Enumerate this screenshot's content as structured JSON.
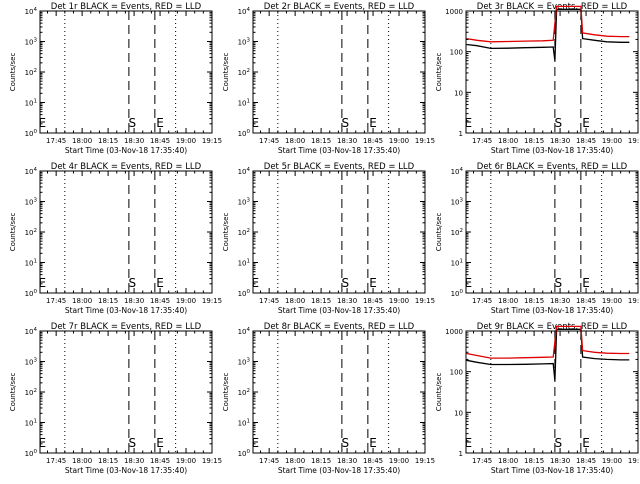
{
  "chart_data": [
    {
      "type": "line",
      "title": "Det 1r BLACK = Events, RED = LLD",
      "xlabel": "Start Time (03-Nov-18 17:35:40)",
      "ylabel": "Counts/sec",
      "y_scale": "log",
      "ylim": [
        1,
        10000
      ],
      "y_tick_labels": [
        "10^0",
        "10^1",
        "10^2",
        "10^3",
        "10^4"
      ],
      "x_tick_labels": [
        "17:45",
        "18:00",
        "18:15",
        "18:30",
        "18:45",
        "19:00",
        "19:15"
      ],
      "dotted_lines_at": [
        "17:50",
        "18:54"
      ],
      "dashed_lines_at": [
        "18:27",
        "18:42"
      ],
      "markers": [
        {
          "text": "E",
          "at": "17:37"
        },
        {
          "text": "S",
          "at": "18:29"
        },
        {
          "text": "E",
          "at": "18:45"
        }
      ],
      "series": []
    },
    {
      "type": "line",
      "title": "Det 2r BLACK = Events, RED = LLD",
      "xlabel": "Start Time (03-Nov-18 17:35:40)",
      "ylabel": "Counts/sec",
      "y_scale": "log",
      "ylim": [
        1,
        10000
      ],
      "y_tick_labels": [
        "10^0",
        "10^1",
        "10^2",
        "10^3",
        "10^4"
      ],
      "x_tick_labels": [
        "17:45",
        "18:00",
        "18:15",
        "18:30",
        "18:45",
        "19:00",
        "19:15"
      ],
      "dotted_lines_at": [
        "17:50",
        "18:54"
      ],
      "dashed_lines_at": [
        "18:27",
        "18:42"
      ],
      "markers": [
        {
          "text": "E",
          "at": "17:37"
        },
        {
          "text": "S",
          "at": "18:29"
        },
        {
          "text": "E",
          "at": "18:45"
        }
      ],
      "series": []
    },
    {
      "type": "line",
      "title": "Det 3r BLACK = Events, RED = LLD",
      "xlabel": "Start Time (03-Nov-18 17:35:40)",
      "ylabel": "Counts/sec",
      "y_scale": "log",
      "ylim": [
        1,
        1000
      ],
      "y_tick_labels": [
        "1",
        "10",
        "100",
        "1000"
      ],
      "x_tick_labels": [
        "17:45",
        "18:00",
        "18:15",
        "18:30",
        "18:45",
        "19:00",
        "19:15"
      ],
      "dotted_lines_at": [
        "17:50",
        "18:54"
      ],
      "dashed_lines_at": [
        "18:27",
        "18:42"
      ],
      "markers": [
        {
          "text": "E",
          "at": "17:37"
        },
        {
          "text": "S",
          "at": "18:29"
        },
        {
          "text": "E",
          "at": "18:45"
        }
      ],
      "series": [
        {
          "color": "#000000",
          "points": [
            [
              "17:36",
              150
            ],
            [
              "17:42",
              140
            ],
            [
              "17:50",
              120
            ],
            [
              "18:00",
              122
            ],
            [
              "18:10",
              125
            ],
            [
              "18:20",
              128
            ],
            [
              "18:26",
              130
            ],
            [
              "18:27",
              60
            ],
            [
              "18:28",
              1100
            ],
            [
              "18:42",
              1100
            ],
            [
              "18:43",
              210
            ],
            [
              "18:50",
              190
            ],
            [
              "18:57",
              175
            ],
            [
              "19:05",
              170
            ],
            [
              "19:10",
              170
            ]
          ]
        },
        {
          "color": "#e00000",
          "points": [
            [
              "17:36",
              210
            ],
            [
              "17:42",
              190
            ],
            [
              "17:50",
              175
            ],
            [
              "18:00",
              178
            ],
            [
              "18:10",
              182
            ],
            [
              "18:20",
              185
            ],
            [
              "18:26",
              190
            ],
            [
              "18:28",
              1300
            ],
            [
              "18:42",
              1300
            ],
            [
              "18:43",
              290
            ],
            [
              "18:50",
              260
            ],
            [
              "18:57",
              240
            ],
            [
              "19:05",
              235
            ],
            [
              "19:10",
              235
            ]
          ]
        }
      ]
    },
    {
      "type": "line",
      "title": "Det 4r BLACK = Events, RED = LLD",
      "xlabel": "Start Time (03-Nov-18 17:35:40)",
      "ylabel": "Counts/sec",
      "y_scale": "log",
      "ylim": [
        1,
        10000
      ],
      "y_tick_labels": [
        "10^0",
        "10^1",
        "10^2",
        "10^3",
        "10^4"
      ],
      "x_tick_labels": [
        "17:45",
        "18:00",
        "18:15",
        "18:30",
        "18:45",
        "19:00",
        "19:15"
      ],
      "dotted_lines_at": [
        "17:50",
        "18:54"
      ],
      "dashed_lines_at": [
        "18:27",
        "18:42"
      ],
      "markers": [
        {
          "text": "E",
          "at": "17:37"
        },
        {
          "text": "S",
          "at": "18:29"
        },
        {
          "text": "E",
          "at": "18:45"
        }
      ],
      "series": []
    },
    {
      "type": "line",
      "title": "Det 5r BLACK = Events, RED = LLD",
      "xlabel": "Start Time (03-Nov-18 17:35:40)",
      "ylabel": "Counts/sec",
      "y_scale": "log",
      "ylim": [
        1,
        10000
      ],
      "y_tick_labels": [
        "10^0",
        "10^1",
        "10^2",
        "10^3",
        "10^4"
      ],
      "x_tick_labels": [
        "17:45",
        "18:00",
        "18:15",
        "18:30",
        "18:45",
        "19:00",
        "19:15"
      ],
      "dotted_lines_at": [
        "17:50",
        "18:54"
      ],
      "dashed_lines_at": [
        "18:27",
        "18:42"
      ],
      "markers": [
        {
          "text": "E",
          "at": "17:37"
        },
        {
          "text": "S",
          "at": "18:29"
        },
        {
          "text": "E",
          "at": "18:45"
        }
      ],
      "series": []
    },
    {
      "type": "line",
      "title": "Det 6r BLACK = Events, RED = LLD",
      "xlabel": "Start Time (03-Nov-18 17:35:40)",
      "ylabel": "Counts/sec",
      "y_scale": "log",
      "ylim": [
        1,
        10000
      ],
      "y_tick_labels": [
        "10^0",
        "10^1",
        "10^2",
        "10^3",
        "10^4"
      ],
      "x_tick_labels": [
        "17:45",
        "18:00",
        "18:15",
        "18:30",
        "18:45",
        "19:00",
        "19:15"
      ],
      "dotted_lines_at": [
        "17:50",
        "18:54"
      ],
      "dashed_lines_at": [
        "18:27",
        "18:42"
      ],
      "markers": [
        {
          "text": "E",
          "at": "17:37"
        },
        {
          "text": "S",
          "at": "18:29"
        },
        {
          "text": "E",
          "at": "18:45"
        }
      ],
      "series": []
    },
    {
      "type": "line",
      "title": "Det 7r BLACK = Events, RED = LLD",
      "xlabel": "Start Time (03-Nov-18 17:35:40)",
      "ylabel": "Counts/sec",
      "y_scale": "log",
      "ylim": [
        1,
        10000
      ],
      "y_tick_labels": [
        "10^0",
        "10^1",
        "10^2",
        "10^3",
        "10^4"
      ],
      "x_tick_labels": [
        "17:45",
        "18:00",
        "18:15",
        "18:30",
        "18:45",
        "19:00",
        "19:15"
      ],
      "dotted_lines_at": [
        "17:50",
        "18:54"
      ],
      "dashed_lines_at": [
        "18:27",
        "18:42"
      ],
      "markers": [
        {
          "text": "E",
          "at": "17:37"
        },
        {
          "text": "S",
          "at": "18:29"
        },
        {
          "text": "E",
          "at": "18:45"
        }
      ],
      "series": []
    },
    {
      "type": "line",
      "title": "Det 8r BLACK = Events, RED = LLD",
      "xlabel": "Start Time (03-Nov-18 17:35:40)",
      "ylabel": "Counts/sec",
      "y_scale": "log",
      "ylim": [
        1,
        10000
      ],
      "y_tick_labels": [
        "10^0",
        "10^1",
        "10^2",
        "10^3",
        "10^4"
      ],
      "x_tick_labels": [
        "17:45",
        "18:00",
        "18:15",
        "18:30",
        "18:45",
        "19:00",
        "19:15"
      ],
      "dotted_lines_at": [
        "17:50",
        "18:54"
      ],
      "dashed_lines_at": [
        "18:27",
        "18:42"
      ],
      "markers": [
        {
          "text": "E",
          "at": "17:37"
        },
        {
          "text": "S",
          "at": "18:29"
        },
        {
          "text": "E",
          "at": "18:45"
        }
      ],
      "series": []
    },
    {
      "type": "line",
      "title": "Det 9r BLACK = Events, RED = LLD",
      "xlabel": "Start Time (03-Nov-18 17:35:40)",
      "ylabel": "Counts/sec",
      "y_scale": "log",
      "ylim": [
        1,
        1000
      ],
      "y_tick_labels": [
        "1",
        "10",
        "100",
        "1000"
      ],
      "x_tick_labels": [
        "17:45",
        "18:00",
        "18:15",
        "18:30",
        "18:45",
        "19:00",
        "19:15"
      ],
      "dotted_lines_at": [
        "17:50",
        "18:54"
      ],
      "dashed_lines_at": [
        "18:27",
        "18:42"
      ],
      "markers": [
        {
          "text": "E",
          "at": "17:37"
        },
        {
          "text": "S",
          "at": "18:29"
        },
        {
          "text": "E",
          "at": "18:45"
        }
      ],
      "series": [
        {
          "color": "#000000",
          "points": [
            [
              "17:36",
              190
            ],
            [
              "17:42",
              170
            ],
            [
              "17:50",
              150
            ],
            [
              "18:00",
              150
            ],
            [
              "18:10",
              152
            ],
            [
              "18:20",
              155
            ],
            [
              "18:26",
              158
            ],
            [
              "18:27",
              60
            ],
            [
              "18:28",
              1100
            ],
            [
              "18:42",
              1100
            ],
            [
              "18:43",
              230
            ],
            [
              "18:50",
              210
            ],
            [
              "18:57",
              200
            ],
            [
              "19:05",
              195
            ],
            [
              "19:10",
              195
            ]
          ]
        },
        {
          "color": "#e00000",
          "points": [
            [
              "17:36",
              280
            ],
            [
              "17:42",
              250
            ],
            [
              "17:50",
              215
            ],
            [
              "18:00",
              215
            ],
            [
              "18:10",
              220
            ],
            [
              "18:20",
              225
            ],
            [
              "18:26",
              230
            ],
            [
              "18:28",
              1300
            ],
            [
              "18:42",
              1300
            ],
            [
              "18:43",
              330
            ],
            [
              "18:50",
              300
            ],
            [
              "18:57",
              285
            ],
            [
              "19:05",
              280
            ],
            [
              "19:10",
              280
            ]
          ]
        }
      ]
    }
  ]
}
